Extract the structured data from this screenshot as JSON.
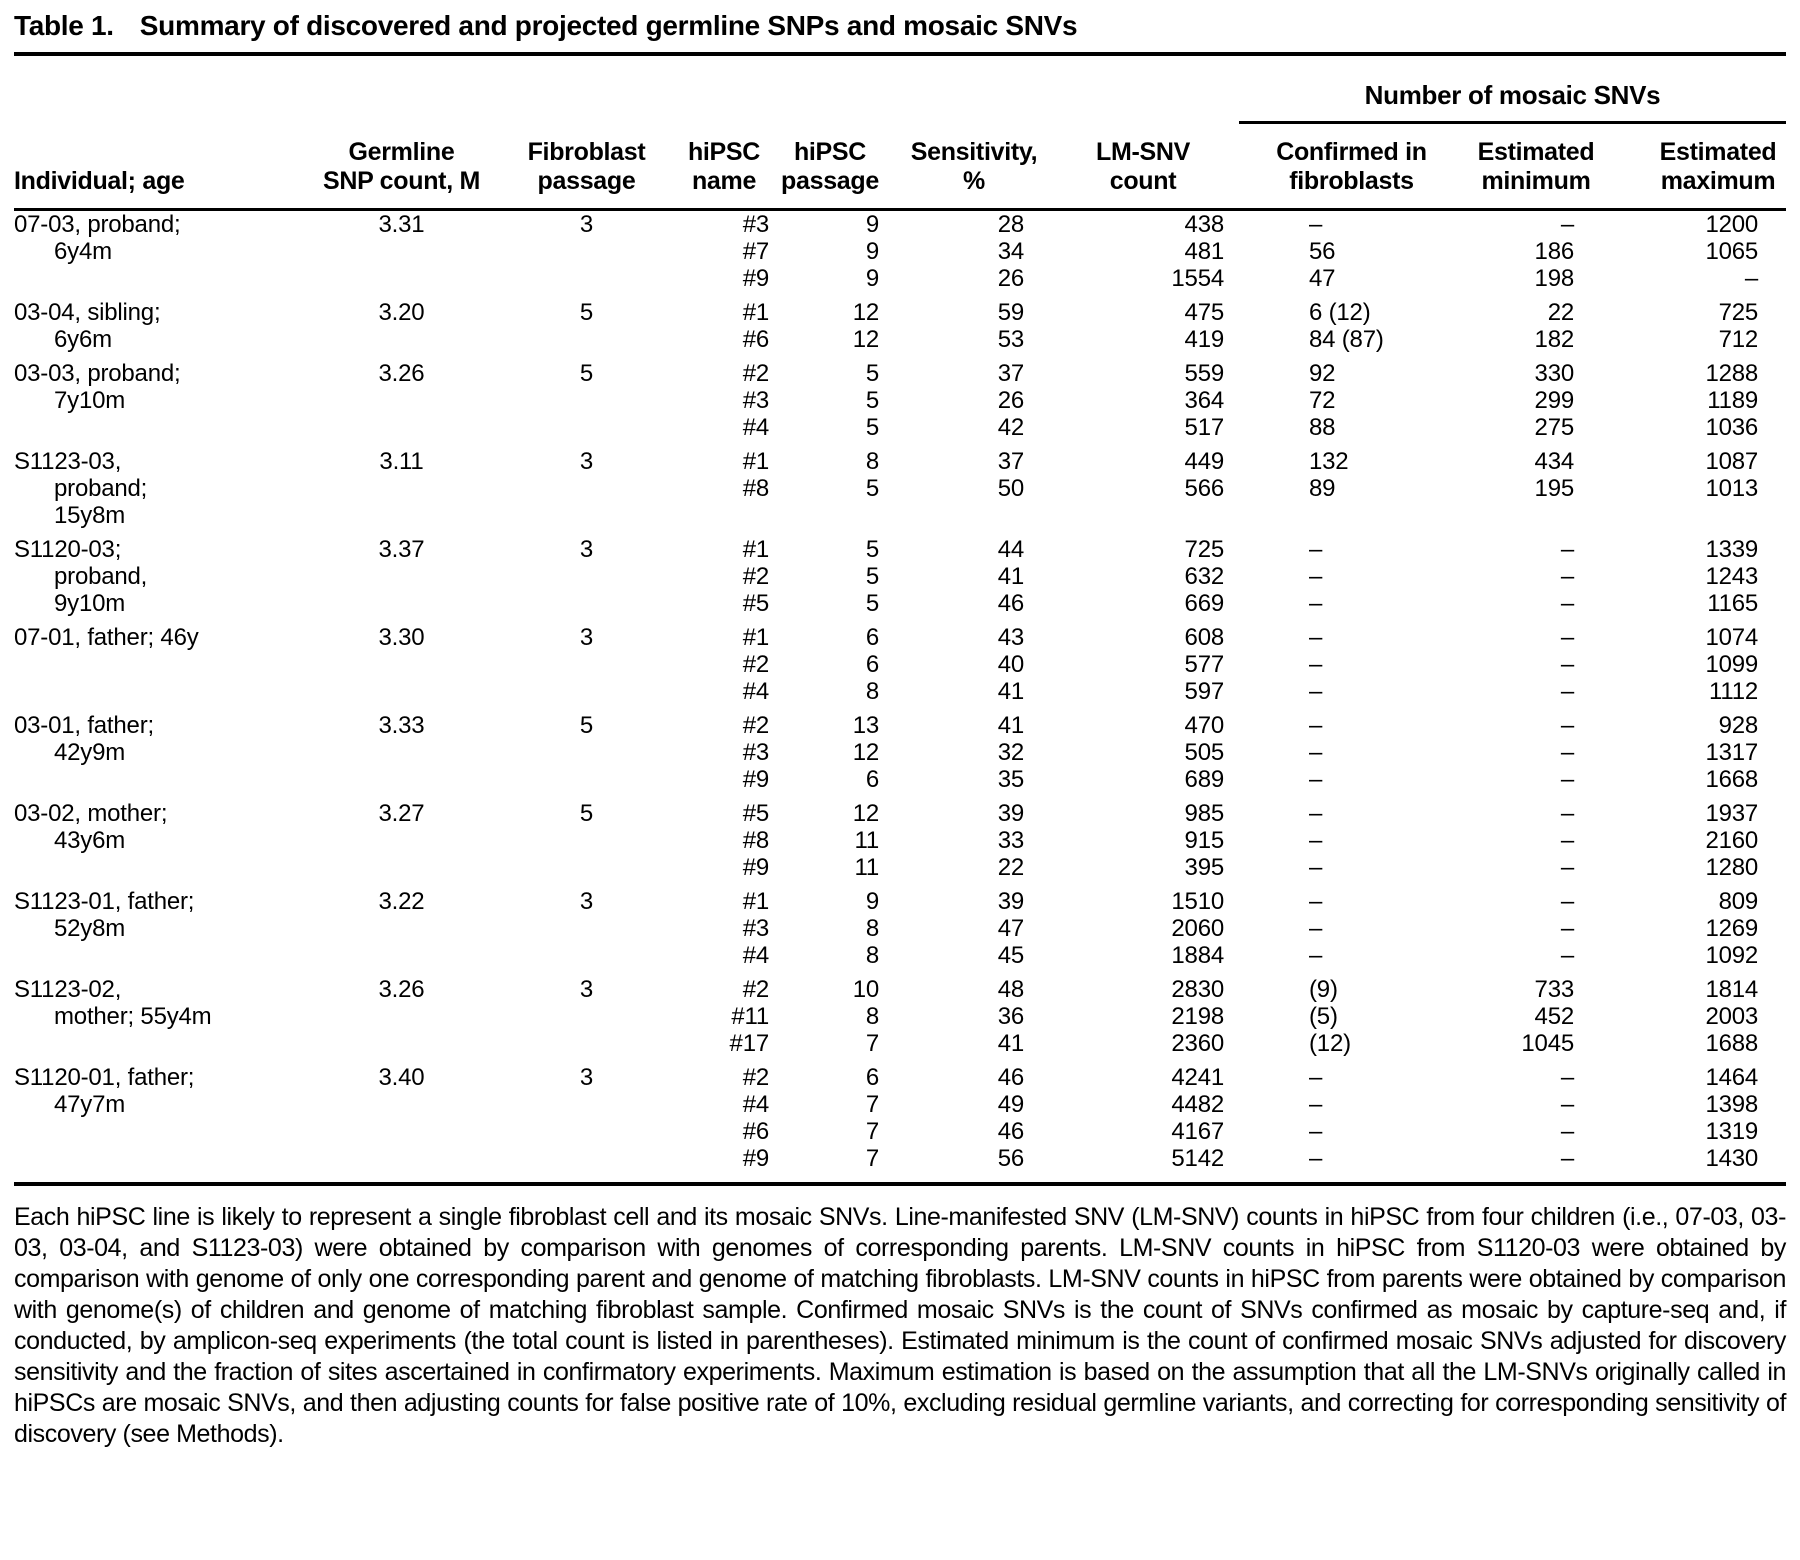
{
  "title": {
    "label": "Table 1.",
    "text": "Summary of discovered and projected germline SNPs and mosaic SNVs"
  },
  "headers": {
    "individual": "Individual; age",
    "germline_snp": "Germline\nSNP count, M",
    "fibroblast_passage": "Fibroblast\npassage",
    "hipsc_name": "hiPSC\nname",
    "hipsc_passage": "hiPSC\npassage",
    "sensitivity": "Sensitivity,\n%",
    "lm_snv_count": "LM-SNV\ncount",
    "mosaic_group": "Number of mosaic SNVs",
    "confirmed": "Confirmed in\nfibroblasts",
    "estimated_min": "Estimated\nminimum",
    "estimated_max": "Estimated\nmaximum"
  },
  "groups": [
    {
      "individual_lines": [
        "07-03, proband;",
        "6y4m"
      ],
      "germline_snp_count": "3.31",
      "fibroblast_passage": "3",
      "lines": [
        [
          "#3",
          "9",
          "28",
          "438",
          "–",
          "–",
          "1200"
        ],
        [
          "#7",
          "9",
          "34",
          "481",
          "56",
          "186",
          "1065"
        ],
        [
          "#9",
          "9",
          "26",
          "1554",
          "47",
          "198",
          "–"
        ]
      ]
    },
    {
      "individual_lines": [
        "03-04, sibling;",
        "6y6m"
      ],
      "germline_snp_count": "3.20",
      "fibroblast_passage": "5",
      "lines": [
        [
          "#1",
          "12",
          "59",
          "475",
          "6 (12)",
          "22",
          "725"
        ],
        [
          "#6",
          "12",
          "53",
          "419",
          "84 (87)",
          "182",
          "712"
        ]
      ]
    },
    {
      "individual_lines": [
        "03-03, proband;",
        "7y10m"
      ],
      "germline_snp_count": "3.26",
      "fibroblast_passage": "5",
      "lines": [
        [
          "#2",
          "5",
          "37",
          "559",
          "92",
          "330",
          "1288"
        ],
        [
          "#3",
          "5",
          "26",
          "364",
          "72",
          "299",
          "1189"
        ],
        [
          "#4",
          "5",
          "42",
          "517",
          "88",
          "275",
          "1036"
        ]
      ]
    },
    {
      "individual_lines": [
        "S1123-03,",
        "proband;",
        "15y8m"
      ],
      "germline_snp_count": "3.11",
      "fibroblast_passage": "3",
      "lines": [
        [
          "#1",
          "8",
          "37",
          "449",
          "132",
          "434",
          "1087"
        ],
        [
          "#8",
          "5",
          "50",
          "566",
          "89",
          "195",
          "1013"
        ]
      ]
    },
    {
      "individual_lines": [
        "S1120-03;",
        "proband,",
        "9y10m"
      ],
      "germline_snp_count": "3.37",
      "fibroblast_passage": "3",
      "lines": [
        [
          "#1",
          "5",
          "44",
          "725",
          "–",
          "–",
          "1339"
        ],
        [
          "#2",
          "5",
          "41",
          "632",
          "–",
          "–",
          "1243"
        ],
        [
          "#5",
          "5",
          "46",
          "669",
          "–",
          "–",
          "1165"
        ]
      ]
    },
    {
      "individual_lines": [
        "07-01, father; 46y"
      ],
      "germline_snp_count": "3.30",
      "fibroblast_passage": "3",
      "lines": [
        [
          "#1",
          "6",
          "43",
          "608",
          "–",
          "–",
          "1074"
        ],
        [
          "#2",
          "6",
          "40",
          "577",
          "–",
          "–",
          "1099"
        ],
        [
          "#4",
          "8",
          "41",
          "597",
          "–",
          "–",
          "1112"
        ]
      ]
    },
    {
      "individual_lines": [
        "03-01, father;",
        "42y9m"
      ],
      "germline_snp_count": "3.33",
      "fibroblast_passage": "5",
      "lines": [
        [
          "#2",
          "13",
          "41",
          "470",
          "–",
          "–",
          "928"
        ],
        [
          "#3",
          "12",
          "32",
          "505",
          "–",
          "–",
          "1317"
        ],
        [
          "#9",
          "6",
          "35",
          "689",
          "–",
          "–",
          "1668"
        ]
      ]
    },
    {
      "individual_lines": [
        "03-02, mother;",
        "43y6m"
      ],
      "germline_snp_count": "3.27",
      "fibroblast_passage": "5",
      "lines": [
        [
          "#5",
          "12",
          "39",
          "985",
          "–",
          "–",
          "1937"
        ],
        [
          "#8",
          "11",
          "33",
          "915",
          "–",
          "–",
          "2160"
        ],
        [
          "#9",
          "11",
          "22",
          "395",
          "–",
          "–",
          "1280"
        ]
      ]
    },
    {
      "individual_lines": [
        "S1123-01, father;",
        "52y8m"
      ],
      "germline_snp_count": "3.22",
      "fibroblast_passage": "3",
      "lines": [
        [
          "#1",
          "9",
          "39",
          "1510",
          "–",
          "–",
          "809"
        ],
        [
          "#3",
          "8",
          "47",
          "2060",
          "–",
          "–",
          "1269"
        ],
        [
          "#4",
          "8",
          "45",
          "1884",
          "–",
          "–",
          "1092"
        ]
      ]
    },
    {
      "individual_lines": [
        "S1123-02,",
        "mother; 55y4m"
      ],
      "germline_snp_count": "3.26",
      "fibroblast_passage": "3",
      "lines": [
        [
          "#2",
          "10",
          "48",
          "2830",
          "(9)",
          "733",
          "1814"
        ],
        [
          "#11",
          "8",
          "36",
          "2198",
          "(5)",
          "452",
          "2003"
        ],
        [
          "#17",
          "7",
          "41",
          "2360",
          "(12)",
          "1045",
          "1688"
        ]
      ]
    },
    {
      "individual_lines": [
        "S1120-01, father;",
        "47y7m"
      ],
      "germline_snp_count": "3.40",
      "fibroblast_passage": "3",
      "lines": [
        [
          "#2",
          "6",
          "46",
          "4241",
          "–",
          "–",
          "1464"
        ],
        [
          "#4",
          "7",
          "49",
          "4482",
          "–",
          "–",
          "1398"
        ],
        [
          "#6",
          "7",
          "46",
          "4167",
          "–",
          "–",
          "1319"
        ],
        [
          "#9",
          "7",
          "56",
          "5142",
          "–",
          "–",
          "1430"
        ]
      ]
    }
  ],
  "footnote": "Each hiPSC line is likely to represent a single fibroblast cell and its mosaic SNVs. Line-manifested SNV (LM-SNV) counts in hiPSC from four children (i.e., 07-03, 03-03, 03-04, and S1123-03) were obtained by comparison with genomes of corresponding parents. LM-SNV counts in hiPSC from S1120-03 were obtained by comparison with genome of only one corresponding parent and genome of matching fibroblasts. LM-SNV counts in hiPSC from parents were obtained by comparison with genome(s) of children and genome of matching fibroblast sample. Confirmed mosaic SNVs is the count of SNVs confirmed as mosaic by capture-seq and, if conducted, by amplicon-seq experiments (the total count is listed in parentheses). Estimated minimum is the count of confirmed mosaic SNVs adjusted for discovery sensitivity and the fraction of sites ascertained in confirmatory experiments. Maximum estimation is based on the assumption that all the LM-SNVs originally called in hiPSCs are mosaic SNVs, and then adjusting counts for false positive rate of 10%, excluding residual germline variants, and correcting for corresponding sensitivity of discovery (see Methods)."
}
